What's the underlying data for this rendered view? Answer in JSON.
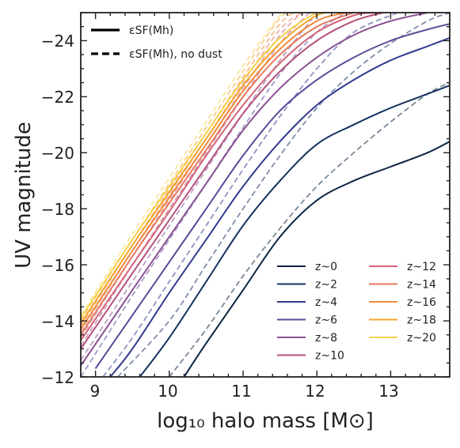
{
  "chart_data": {
    "type": "line",
    "title": "",
    "xlabel": "log₁₀ halo mass [M⊙]",
    "ylabel": "UV magnitude",
    "xlim": [
      8.8,
      13.8
    ],
    "ylim": [
      -12,
      -25
    ],
    "y_inverted": true,
    "grid": false,
    "x_ticks": [
      9,
      10,
      11,
      12,
      13
    ],
    "x_tick_labels": [
      "9",
      "10",
      "11",
      "12",
      "13"
    ],
    "y_ticks": [
      -24,
      -22,
      -20,
      -18,
      -16,
      -14,
      -12
    ],
    "y_tick_labels": [
      "−24",
      "−22",
      "−20",
      "−18",
      "−16",
      "−14",
      "−12"
    ],
    "style_legend": {
      "placement": "top-left",
      "entries": [
        {
          "style": "solid",
          "label": "εSF(Mh)"
        },
        {
          "style": "dashed",
          "label": "εSF(Mh), no dust"
        }
      ]
    },
    "legend": {
      "placement": "lower-right",
      "columns": 2
    },
    "series": [
      {
        "name": "z~0",
        "color": "#0b2440",
        "x": [
          10.2,
          10.5,
          11.0,
          11.5,
          12.0,
          12.5,
          13.0,
          13.5,
          13.8
        ],
        "y": [
          -12.0,
          -13.2,
          -15.1,
          -17.0,
          -18.3,
          -19.0,
          -19.5,
          -20.0,
          -20.4
        ],
        "dust_x": [
          10.0,
          10.5,
          11.0,
          11.5,
          12.0,
          12.5,
          13.0,
          13.5,
          13.8
        ],
        "dust_y": [
          -12.0,
          -13.7,
          -15.6,
          -17.3,
          -18.8,
          -20.0,
          -21.1,
          -22.1,
          -22.5
        ]
      },
      {
        "name": "z~2",
        "color": "#16325e",
        "x": [
          9.6,
          10.0,
          10.5,
          11.0,
          11.5,
          12.0,
          12.5,
          13.0,
          13.5,
          13.8
        ],
        "y": [
          -12.0,
          -13.4,
          -15.4,
          -17.4,
          -19.0,
          -20.3,
          -21.0,
          -21.6,
          -22.1,
          -22.4
        ],
        "dust_x": [
          9.3,
          10.0,
          10.5,
          11.0,
          11.5,
          12.0,
          12.5,
          13.0,
          13.5,
          13.8
        ],
        "dust_y": [
          -12.0,
          -14.0,
          -16.0,
          -18.0,
          -19.9,
          -21.6,
          -22.9,
          -23.9,
          -24.7,
          -25.0
        ]
      },
      {
        "name": "z~4",
        "color": "#323b8e",
        "x": [
          9.2,
          9.5,
          10.0,
          10.5,
          11.0,
          11.5,
          12.0,
          12.5,
          13.0,
          13.5,
          13.8
        ],
        "y": [
          -12.0,
          -13.0,
          -15.0,
          -16.9,
          -18.8,
          -20.4,
          -21.7,
          -22.6,
          -23.3,
          -23.8,
          -24.1
        ],
        "dust_x": [
          9.1,
          9.5,
          10.0,
          10.5,
          11.0,
          11.5,
          12.0,
          12.5,
          13.1
        ],
        "dust_y": [
          -12.0,
          -13.4,
          -15.4,
          -17.4,
          -19.4,
          -21.3,
          -23.0,
          -24.3,
          -25.0
        ]
      },
      {
        "name": "z~6",
        "color": "#5a4a98",
        "x": [
          9.0,
          9.5,
          10.0,
          10.5,
          11.0,
          11.5,
          12.0,
          12.5,
          13.0,
          13.5,
          13.8
        ],
        "y": [
          -12.3,
          -14.2,
          -16.1,
          -18.0,
          -19.9,
          -21.5,
          -22.6,
          -23.4,
          -24.0,
          -24.4,
          -24.6
        ],
        "dust_x": [
          8.8,
          9.5,
          10.0,
          10.5,
          11.0,
          11.5,
          12.0,
          12.4
        ],
        "dust_y": [
          -12.0,
          -14.9,
          -16.9,
          -18.9,
          -20.9,
          -22.8,
          -24.3,
          -25.0
        ]
      },
      {
        "name": "z~8",
        "color": "#8a4f93",
        "x": [
          8.8,
          9.5,
          10.0,
          10.5,
          11.0,
          11.5,
          12.0,
          12.5,
          13.0,
          13.5
        ],
        "y": [
          -12.4,
          -15.1,
          -17.0,
          -18.9,
          -20.8,
          -22.3,
          -23.4,
          -24.2,
          -24.7,
          -25.0
        ],
        "dust_x": [
          8.8,
          9.5,
          10.0,
          10.5,
          11.0,
          11.5,
          12.0
        ],
        "dust_y": [
          -12.6,
          -15.4,
          -17.4,
          -19.4,
          -21.4,
          -23.3,
          -25.0
        ]
      },
      {
        "name": "z~10",
        "color": "#b4527e",
        "x": [
          8.8,
          9.5,
          10.0,
          10.5,
          11.0,
          11.5,
          12.0,
          12.5,
          12.9
        ],
        "y": [
          -13.0,
          -15.7,
          -17.6,
          -19.5,
          -21.4,
          -22.9,
          -24.0,
          -24.7,
          -25.0
        ],
        "dust_x": [
          8.8,
          9.5,
          10.0,
          10.5,
          11.0,
          11.5,
          11.9
        ],
        "dust_y": [
          -13.1,
          -16.0,
          -18.0,
          -20.0,
          -22.0,
          -23.9,
          -25.0
        ]
      },
      {
        "name": "z~12",
        "color": "#d4647a",
        "x": [
          8.8,
          9.5,
          10.0,
          10.5,
          11.0,
          11.5,
          12.0,
          12.5,
          12.8
        ],
        "y": [
          -13.3,
          -16.0,
          -17.9,
          -19.9,
          -21.7,
          -23.2,
          -24.3,
          -24.9,
          -25.0
        ],
        "dust_x": [
          8.8,
          9.5,
          10.0,
          10.5,
          11.0,
          11.5,
          11.8
        ],
        "dust_y": [
          -13.4,
          -16.3,
          -18.3,
          -20.3,
          -22.3,
          -24.2,
          -25.0
        ]
      },
      {
        "name": "z~14",
        "color": "#e3795d",
        "x": [
          8.8,
          9.5,
          10.0,
          10.5,
          11.0,
          11.5,
          12.0,
          12.5
        ],
        "y": [
          -13.5,
          -16.3,
          -18.2,
          -20.1,
          -22.0,
          -23.5,
          -24.5,
          -25.0
        ],
        "dust_x": [
          8.8,
          9.5,
          10.0,
          10.5,
          11.0,
          11.5,
          11.8
        ],
        "dust_y": [
          -13.6,
          -16.5,
          -18.5,
          -20.5,
          -22.5,
          -24.4,
          -25.0
        ]
      },
      {
        "name": "z~16",
        "color": "#f08a3c",
        "x": [
          8.8,
          9.5,
          10.0,
          10.5,
          11.0,
          11.5,
          12.0,
          12.4
        ],
        "y": [
          -13.7,
          -16.5,
          -18.4,
          -20.3,
          -22.2,
          -23.7,
          -24.7,
          -25.0
        ],
        "dust_x": [
          8.8,
          9.5,
          10.0,
          10.5,
          11.0,
          11.5,
          11.7
        ],
        "dust_y": [
          -13.8,
          -16.7,
          -18.7,
          -20.7,
          -22.7,
          -24.6,
          -25.0
        ]
      },
      {
        "name": "z~18",
        "color": "#f5a52a",
        "x": [
          8.8,
          9.5,
          10.0,
          10.5,
          11.0,
          11.5,
          12.0,
          12.3
        ],
        "y": [
          -13.9,
          -16.7,
          -18.6,
          -20.5,
          -22.4,
          -23.9,
          -24.9,
          -25.0
        ],
        "dust_x": [
          8.8,
          9.5,
          10.0,
          10.5,
          11.0,
          11.5,
          11.7
        ],
        "dust_y": [
          -14.0,
          -16.9,
          -18.9,
          -20.9,
          -22.9,
          -24.8,
          -25.0
        ]
      },
      {
        "name": "z~20",
        "color": "#f6d24f",
        "x": [
          8.8,
          9.5,
          10.0,
          10.5,
          11.0,
          11.5,
          12.0,
          12.2
        ],
        "y": [
          -14.1,
          -16.9,
          -18.8,
          -20.7,
          -22.6,
          -24.1,
          -25.0,
          -25.0
        ],
        "dust_x": [
          8.8,
          9.5,
          10.0,
          10.5,
          11.0,
          11.5,
          11.6
        ],
        "dust_y": [
          -14.2,
          -17.1,
          -19.1,
          -21.1,
          -23.1,
          -24.9,
          -25.0
        ]
      }
    ]
  }
}
